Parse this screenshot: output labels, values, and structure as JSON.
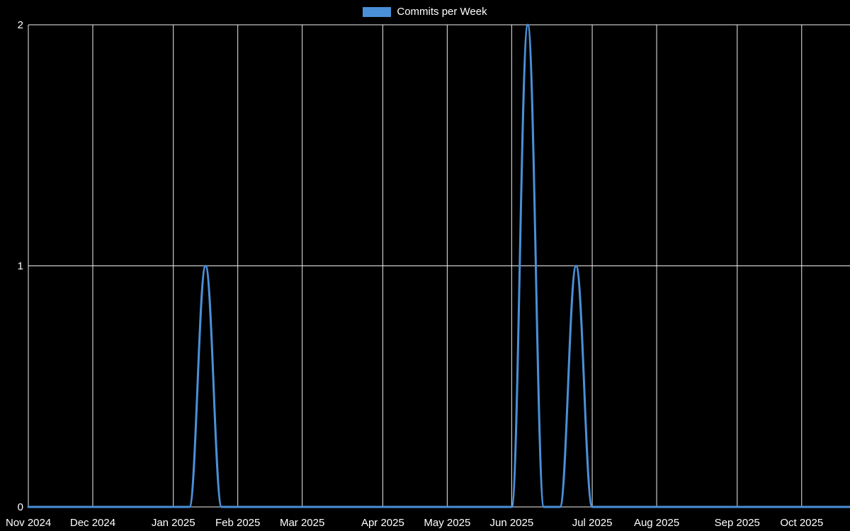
{
  "page": {
    "background": "#000000"
  },
  "chart_data": {
    "type": "line",
    "title": "",
    "xlabel": "",
    "ylabel": "",
    "legend_position": "top-center",
    "grid": true,
    "background": "#000000",
    "gridline_color": "#efefef",
    "text_color": "#ffffff",
    "ylim": [
      0,
      2
    ],
    "y_ticks": [
      0,
      1,
      2
    ],
    "y_tick_labels": [
      "0",
      "1",
      "2"
    ],
    "x": [
      "2024-11-03",
      "2024-11-10",
      "2024-11-17",
      "2024-11-24",
      "2024-12-01",
      "2024-12-08",
      "2024-12-15",
      "2024-12-22",
      "2024-12-29",
      "2025-01-05",
      "2025-01-12",
      "2025-01-19",
      "2025-01-26",
      "2025-02-02",
      "2025-02-09",
      "2025-02-16",
      "2025-02-23",
      "2025-03-02",
      "2025-03-09",
      "2025-03-16",
      "2025-03-23",
      "2025-03-30",
      "2025-04-06",
      "2025-04-13",
      "2025-04-20",
      "2025-04-27",
      "2025-05-04",
      "2025-05-11",
      "2025-05-18",
      "2025-05-25",
      "2025-06-01",
      "2025-06-08",
      "2025-06-15",
      "2025-06-22",
      "2025-06-29",
      "2025-07-06",
      "2025-07-13",
      "2025-07-20",
      "2025-07-27",
      "2025-08-03",
      "2025-08-10",
      "2025-08-17",
      "2025-08-24",
      "2025-08-31",
      "2025-09-07",
      "2025-09-14",
      "2025-09-21",
      "2025-09-28",
      "2025-10-05",
      "2025-10-12",
      "2025-10-19",
      "2025-10-26"
    ],
    "series": [
      {
        "name": "Commits per Week",
        "color": "#4a90d9",
        "values": [
          0,
          0,
          0,
          0,
          0,
          0,
          0,
          0,
          0,
          0,
          0,
          1,
          0,
          0,
          0,
          0,
          0,
          0,
          0,
          0,
          0,
          0,
          0,
          0,
          0,
          0,
          0,
          0,
          0,
          0,
          0,
          2,
          0,
          0,
          1,
          0,
          0,
          0,
          0,
          0,
          0,
          0,
          0,
          0,
          0,
          0,
          0,
          0,
          0,
          0,
          0,
          0
        ]
      }
    ],
    "x_tick_labels": [
      "Nov 2024",
      "Dec 2024",
      "Jan 2025",
      "Feb 2025",
      "Mar 2025",
      "Apr 2025",
      "May 2025",
      "Jun 2025",
      "Jul 2025",
      "Aug 2025",
      "Sep 2025",
      "Oct 2025"
    ],
    "x_tick_indices": [
      0,
      4,
      9,
      13,
      17,
      22,
      26,
      30,
      35,
      39,
      44,
      48
    ]
  }
}
